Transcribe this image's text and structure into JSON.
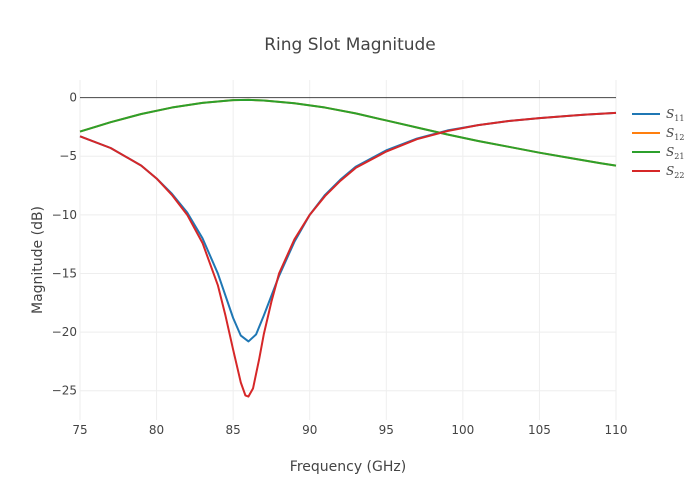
{
  "chart_data": {
    "type": "line",
    "title": "Ring Slot Magnitude",
    "xlabel": "Frequency (GHz)",
    "ylabel": "Magnitude (dB)",
    "xlim": [
      75,
      110
    ],
    "ylim": [
      -27.5,
      1.5
    ],
    "xticks": [
      75,
      80,
      85,
      90,
      95,
      100,
      105,
      110
    ],
    "yticks": [
      0,
      -5,
      -10,
      -15,
      -20,
      -25
    ],
    "grid": true,
    "legend_position": "right",
    "series": [
      {
        "name": "S11",
        "legend_base": "S",
        "legend_sub": "11",
        "color": "#1f77b4",
        "x": [
          75,
          77,
          79,
          80,
          81,
          82,
          83,
          84,
          85,
          85.5,
          86,
          86.5,
          87,
          88,
          89,
          90,
          91,
          92,
          93,
          95,
          97,
          99,
          101,
          103,
          105,
          107,
          108,
          110
        ],
        "y": [
          -3.3,
          -4.3,
          -5.8,
          -6.9,
          -8.2,
          -9.8,
          -12.0,
          -15.0,
          -18.8,
          -20.3,
          -20.8,
          -20.2,
          -18.6,
          -15.2,
          -12.3,
          -10.0,
          -8.3,
          -7.0,
          -5.9,
          -4.5,
          -3.5,
          -2.8,
          -2.35,
          -2.0,
          -1.75,
          -1.55,
          -1.45,
          -1.3
        ]
      },
      {
        "name": "S12",
        "legend_base": "S",
        "legend_sub": "12",
        "color": "#ff7f0e",
        "x": [
          75,
          77,
          79,
          81,
          83,
          85,
          86,
          87,
          89,
          91,
          93,
          95,
          97,
          99,
          101,
          103,
          105,
          107,
          109,
          110
        ],
        "y": [
          -2.9,
          -2.1,
          -1.4,
          -0.85,
          -0.45,
          -0.22,
          -0.2,
          -0.25,
          -0.48,
          -0.85,
          -1.35,
          -1.95,
          -2.55,
          -3.15,
          -3.7,
          -4.2,
          -4.7,
          -5.15,
          -5.6,
          -5.8
        ]
      },
      {
        "name": "S21",
        "legend_base": "S",
        "legend_sub": "21",
        "color": "#2ca02c",
        "x": [
          75,
          77,
          79,
          81,
          83,
          85,
          86,
          87,
          89,
          91,
          93,
          95,
          97,
          99,
          101,
          103,
          105,
          107,
          109,
          110
        ],
        "y": [
          -2.9,
          -2.1,
          -1.4,
          -0.85,
          -0.45,
          -0.22,
          -0.2,
          -0.25,
          -0.48,
          -0.85,
          -1.35,
          -1.95,
          -2.55,
          -3.15,
          -3.7,
          -4.2,
          -4.7,
          -5.15,
          -5.6,
          -5.8
        ]
      },
      {
        "name": "S22",
        "legend_base": "S",
        "legend_sub": "22",
        "color": "#d62728",
        "x": [
          75,
          77,
          79,
          80,
          81,
          82,
          83,
          84,
          84.5,
          85,
          85.5,
          85.8,
          86,
          86.3,
          86.7,
          87,
          87.5,
          88,
          89,
          90,
          91,
          92,
          93,
          95,
          97,
          99,
          101,
          103,
          105,
          107,
          108,
          110
        ],
        "y": [
          -3.3,
          -4.3,
          -5.8,
          -6.9,
          -8.3,
          -10.0,
          -12.4,
          -16.0,
          -18.6,
          -21.5,
          -24.3,
          -25.4,
          -25.5,
          -24.8,
          -22.3,
          -20.2,
          -17.4,
          -15.0,
          -12.1,
          -10.0,
          -8.4,
          -7.1,
          -6.0,
          -4.6,
          -3.55,
          -2.85,
          -2.35,
          -2.0,
          -1.75,
          -1.55,
          -1.45,
          -1.3
        ]
      }
    ]
  }
}
